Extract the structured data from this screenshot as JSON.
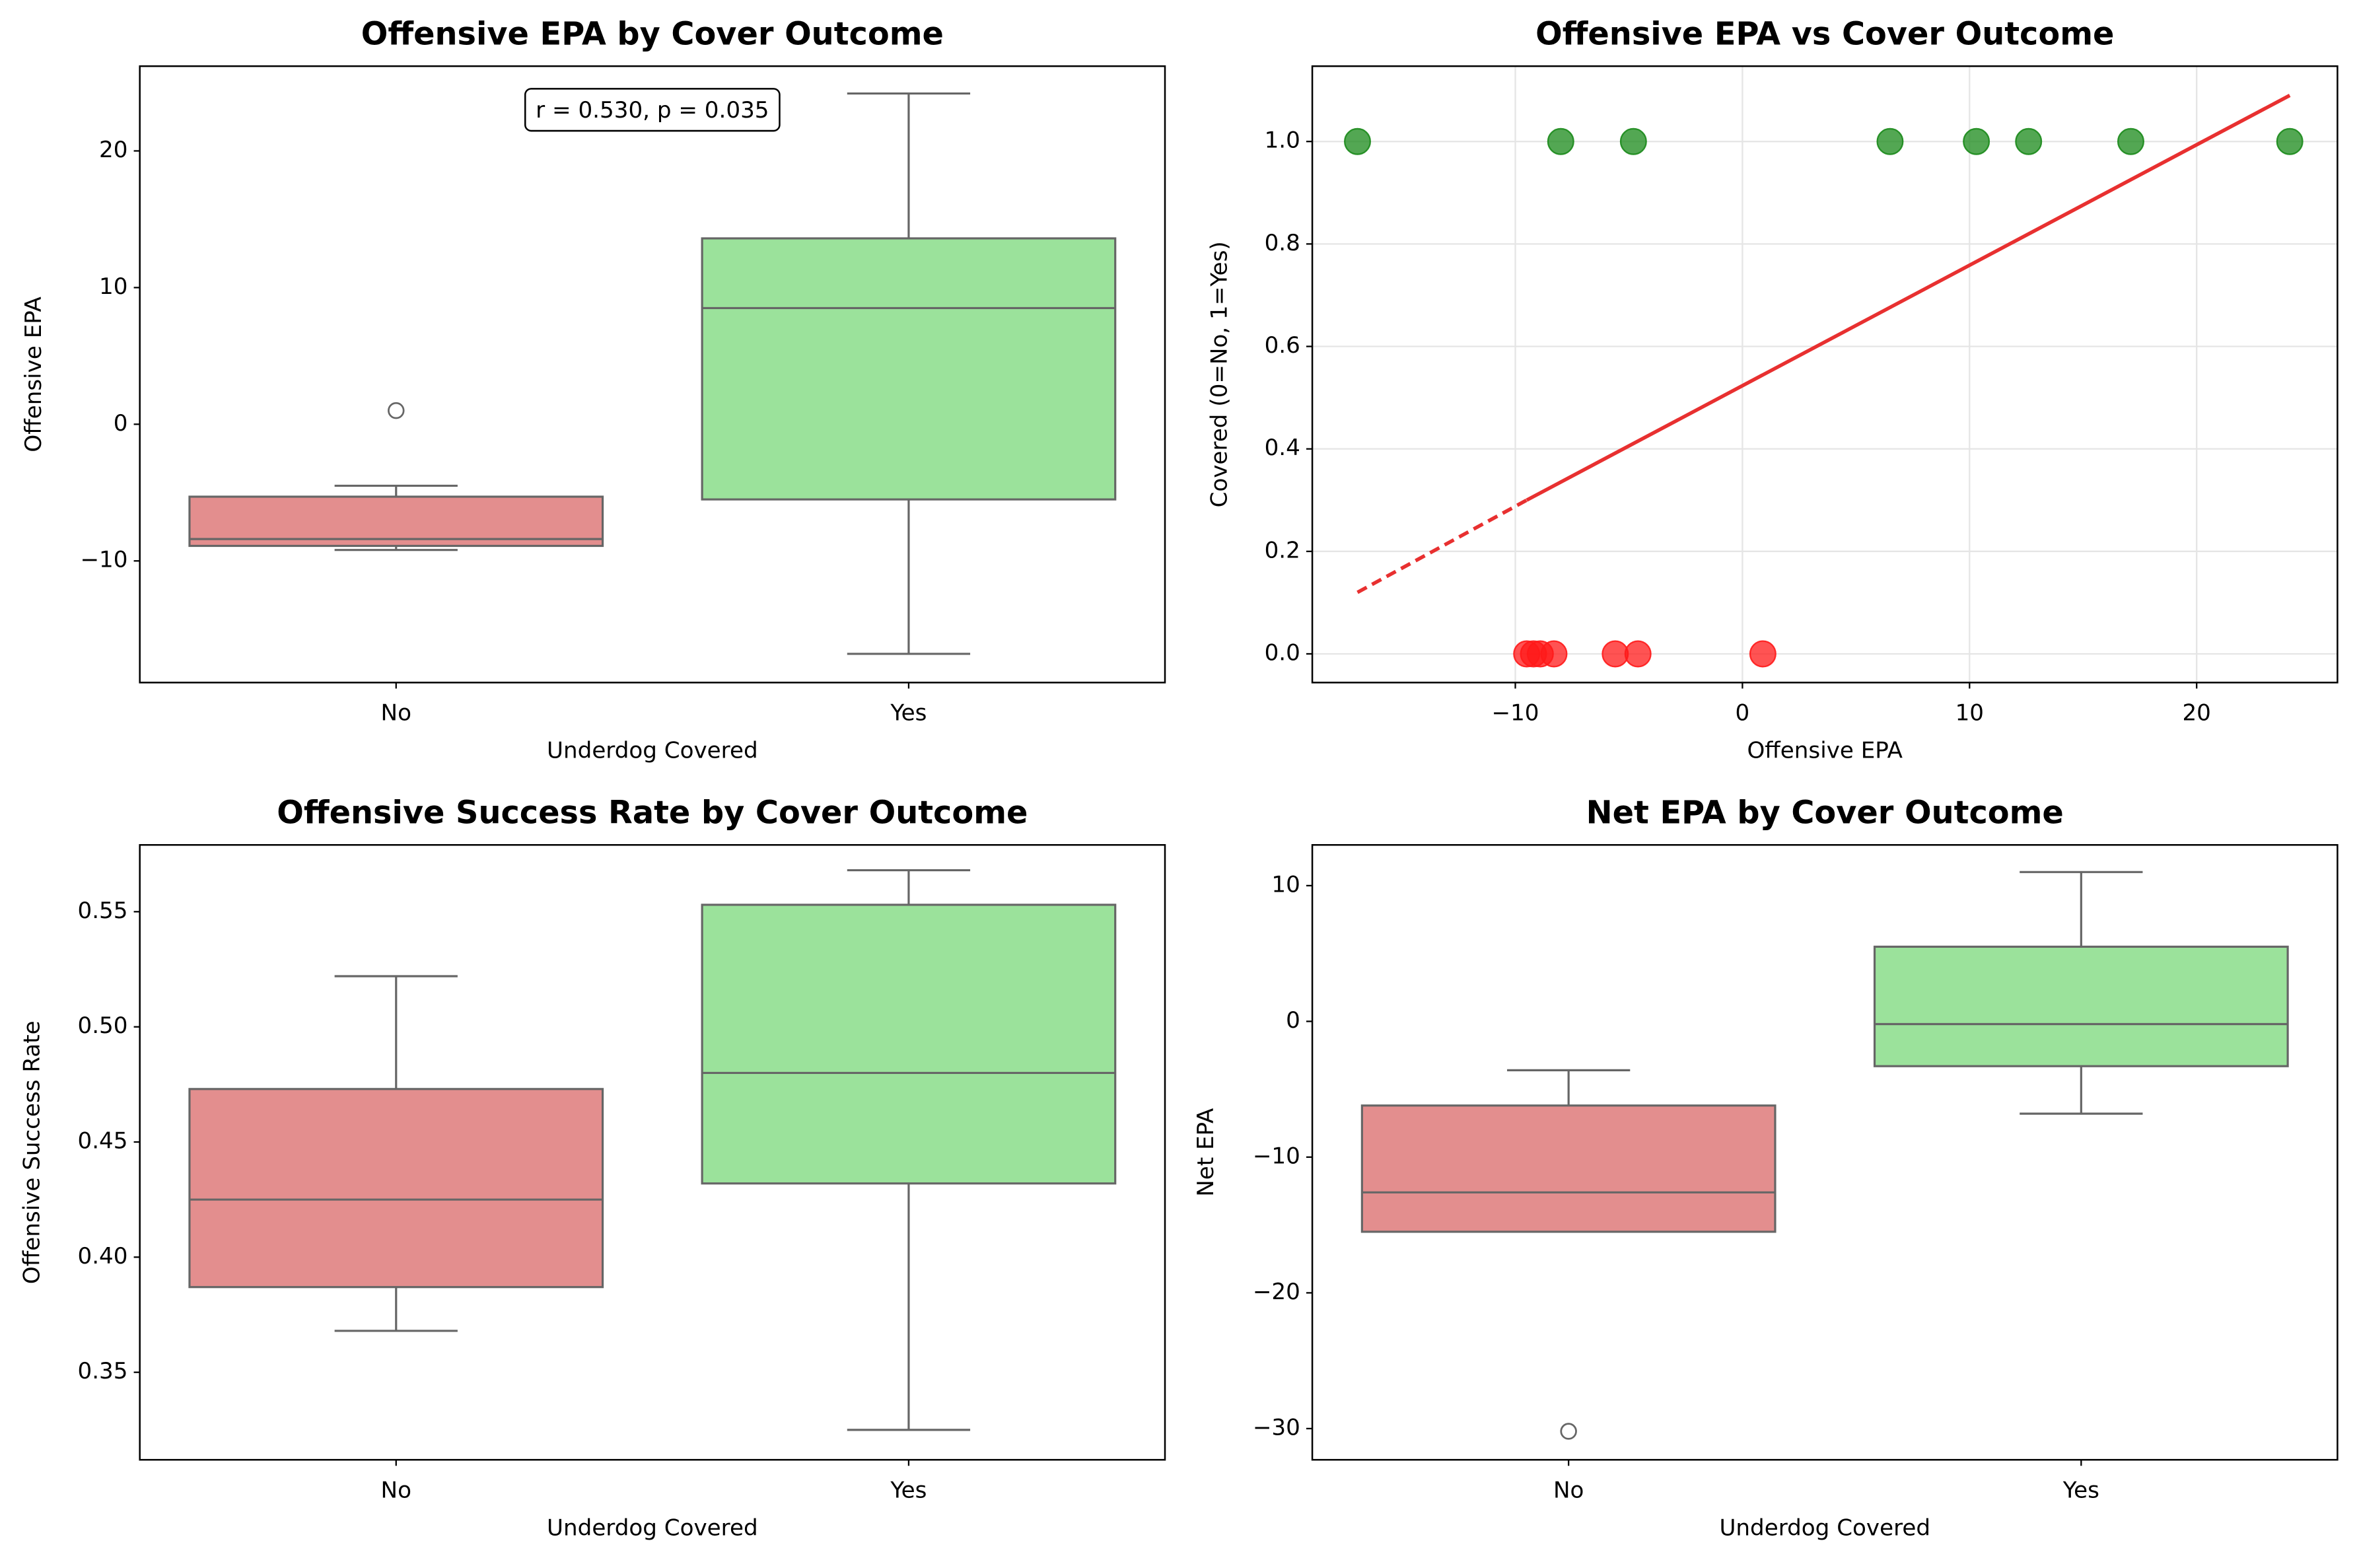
{
  "chart_data": [
    {
      "type": "box",
      "title": "Offensive EPA by Cover Outcome",
      "xlabel": "Underdog Covered",
      "ylabel": "Offensive EPA",
      "categories": [
        "No",
        "Yes"
      ],
      "colors": [
        "#e38e8e",
        "#9be29b"
      ],
      "boxes": [
        {
          "whislo": -9.2,
          "q1": -8.9,
          "med": -8.4,
          "q3": -5.3,
          "whishi": -4.5,
          "fliers": [
            1.0
          ]
        },
        {
          "whislo": -16.8,
          "q1": -5.5,
          "med": 8.5,
          "q3": 13.6,
          "whishi": 24.2,
          "fliers": []
        }
      ],
      "ylim": [
        -18.9,
        26.2
      ],
      "yticks": [
        {
          "value": -10,
          "label": "−10"
        },
        0,
        10,
        20
      ],
      "annotation": "r = 0.530, p = 0.035"
    },
    {
      "type": "scatter",
      "title": "Offensive EPA vs Cover Outcome",
      "xlabel": "Offensive EPA",
      "ylabel": "Covered (0=No, 1=Yes)",
      "points": [
        {
          "color": "#1a8a1a",
          "x": [
            -16.95,
            -8.0,
            -4.8,
            6.5,
            10.3,
            12.6,
            17.1,
            24.1
          ],
          "y": [
            1,
            1,
            1,
            1,
            1,
            1,
            1,
            1
          ]
        },
        {
          "color": "#ff1a1a",
          "x": [
            -9.5,
            -9.2,
            -8.9,
            -8.3,
            -5.6,
            -4.6,
            0.9
          ],
          "y": [
            0,
            0,
            0,
            0,
            0,
            0,
            0
          ]
        }
      ],
      "lines": [
        {
          "color": "#e83030",
          "style": "dashed",
          "x": [
            -16.95,
            -9.5
          ],
          "y": [
            0.12,
            0.3
          ]
        },
        {
          "color": "#e83030",
          "style": "solid",
          "x": [
            -9.5,
            24.1
          ],
          "y": [
            0.3,
            1.09
          ]
        }
      ],
      "xlim": [
        -18.94,
        26.2
      ],
      "xticks": [
        {
          "value": -10,
          "label": "−10"
        },
        0,
        10,
        20
      ],
      "ylim": [
        -0.056,
        1.147
      ],
      "yticks": [
        {
          "value": 0,
          "label": "0.0"
        },
        0.2,
        0.4,
        0.6,
        0.8,
        {
          "value": 1,
          "label": "1.0"
        }
      ],
      "grid": true
    },
    {
      "type": "box",
      "title": "Offensive Success Rate by Cover Outcome",
      "xlabel": "Underdog Covered",
      "ylabel": "Offensive Success Rate",
      "categories": [
        "No",
        "Yes"
      ],
      "colors": [
        "#e38e8e",
        "#9be29b"
      ],
      "boxes": [
        {
          "whislo": 0.368,
          "q1": 0.387,
          "med": 0.425,
          "q3": 0.473,
          "whishi": 0.522,
          "fliers": []
        },
        {
          "whislo": 0.325,
          "q1": 0.432,
          "med": 0.48,
          "q3": 0.553,
          "whishi": 0.568,
          "fliers": []
        }
      ],
      "ylim": [
        0.312,
        0.579
      ],
      "yticks": [
        0.35,
        {
          "value": 0.4,
          "label": "0.40"
        },
        0.45,
        {
          "value": 0.5,
          "label": "0.50"
        },
        0.55
      ]
    },
    {
      "type": "box",
      "title": "Net EPA by Cover Outcome",
      "xlabel": "Underdog Covered",
      "ylabel": "Net EPA",
      "categories": [
        "No",
        "Yes"
      ],
      "colors": [
        "#e38e8e",
        "#9be29b"
      ],
      "boxes": [
        {
          "whislo": -15.5,
          "q1": -15.5,
          "med": -12.6,
          "q3": -6.2,
          "whishi": -3.6,
          "fliers": [
            -30.2
          ]
        },
        {
          "whislo": -6.8,
          "q1": -3.3,
          "med": -0.2,
          "q3": 5.5,
          "whishi": 11.0,
          "fliers": []
        }
      ],
      "ylim": [
        -32.3,
        13.0
      ],
      "yticks": [
        {
          "value": -30,
          "label": "−30"
        },
        {
          "value": -20,
          "label": "−20"
        },
        {
          "value": -10,
          "label": "−10"
        },
        0,
        10
      ]
    }
  ]
}
